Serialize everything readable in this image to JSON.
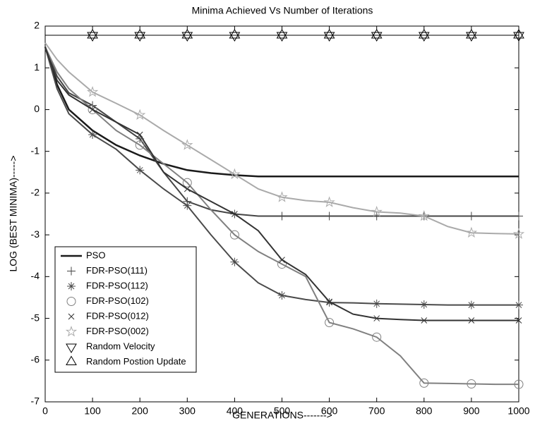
{
  "chart_data": {
    "type": "line",
    "title": "Minima Achieved Vs Number of Iterations",
    "xlabel": "GENERATIONS------->",
    "ylabel": "LOG (BEST MINIMA)----->",
    "x": [
      0,
      25,
      50,
      100,
      150,
      200,
      250,
      300,
      350,
      400,
      450,
      500,
      550,
      600,
      650,
      700,
      750,
      800,
      850,
      900,
      950,
      1000
    ],
    "xlim": [
      0,
      1000
    ],
    "ylim": [
      -7,
      2
    ],
    "xticks": [
      0,
      100,
      200,
      300,
      400,
      500,
      600,
      700,
      800,
      900,
      1000
    ],
    "yticks": [
      -7,
      -6,
      -5,
      -4,
      -3,
      -2,
      -1,
      0,
      1,
      2
    ],
    "grid": false,
    "legend": "lower left",
    "marker_every": 100,
    "series": [
      {
        "name": "PSO",
        "color": "#1a1a1a",
        "marker": "none",
        "values": [
          1.5,
          0.6,
          0,
          -0.5,
          -0.85,
          -1.1,
          -1.3,
          -1.45,
          -1.52,
          -1.57,
          -1.6,
          -1.6,
          -1.6,
          -1.6,
          -1.6,
          -1.6,
          -1.6,
          -1.6,
          -1.6,
          -1.6,
          -1.6,
          -1.6
        ]
      },
      {
        "name": "FDR-PSO(111)",
        "color": "#454545",
        "marker": "plus",
        "values": [
          1.5,
          0.8,
          0.4,
          0.1,
          -0.3,
          -0.7,
          -1.5,
          -2.2,
          -2.4,
          -2.5,
          -2.55,
          -2.55,
          -2.55,
          -2.55,
          -2.55,
          -2.55,
          -2.55,
          -2.55,
          -2.55,
          -2.55,
          -2.55,
          -2.55
        ]
      },
      {
        "name": "FDR-PSO(112)",
        "color": "#4a4a4a",
        "marker": "asterisk",
        "values": [
          1.5,
          0.5,
          -0.1,
          -0.6,
          -0.95,
          -1.45,
          -1.9,
          -2.3,
          -3.0,
          -3.65,
          -4.15,
          -4.45,
          -4.55,
          -4.62,
          -4.63,
          -4.65,
          -4.66,
          -4.67,
          -4.68,
          -4.68,
          -4.68,
          -4.68
        ]
      },
      {
        "name": "FDR-PSO(102)",
        "color": "#808080",
        "marker": "circle",
        "values": [
          1.5,
          0.9,
          0.5,
          0,
          -0.5,
          -0.85,
          -1.3,
          -1.75,
          -2.4,
          -3.0,
          -3.4,
          -3.7,
          -4.0,
          -5.1,
          -5.25,
          -5.45,
          -5.9,
          -6.55,
          -6.56,
          -6.57,
          -6.58,
          -6.58
        ]
      },
      {
        "name": "FDR-PSO(012)",
        "color": "#333333",
        "marker": "x",
        "values": [
          1.5,
          0.7,
          0.35,
          0,
          -0.3,
          -0.6,
          -1.5,
          -1.9,
          -2.2,
          -2.5,
          -2.9,
          -3.6,
          -3.95,
          -4.6,
          -4.9,
          -5.0,
          -5.03,
          -5.05,
          -5.05,
          -5.05,
          -5.05,
          -5.05
        ]
      },
      {
        "name": "FDR-PSO(002)",
        "color": "#aaaaaa",
        "marker": "star",
        "values": [
          1.6,
          1.2,
          0.9,
          0.42,
          0.15,
          -0.13,
          -0.5,
          -0.85,
          -1.2,
          -1.55,
          -1.9,
          -2.1,
          -2.18,
          -2.22,
          -2.35,
          -2.45,
          -2.48,
          -2.55,
          -2.8,
          -2.95,
          -2.97,
          -2.98
        ]
      },
      {
        "name": "Random Velocity",
        "color": "#000000",
        "marker": "triangle-down",
        "values": [
          1.78,
          1.78,
          1.78,
          1.78,
          1.78,
          1.78,
          1.78,
          1.78,
          1.78,
          1.78,
          1.78,
          1.78,
          1.78,
          1.78,
          1.78,
          1.78,
          1.78,
          1.78,
          1.78,
          1.78,
          1.78,
          1.78
        ]
      },
      {
        "name": "Random Postion Update",
        "color": "#000000",
        "marker": "triangle-up",
        "values": [
          1.78,
          1.78,
          1.78,
          1.78,
          1.78,
          1.78,
          1.78,
          1.78,
          1.78,
          1.78,
          1.78,
          1.78,
          1.78,
          1.78,
          1.78,
          1.78,
          1.78,
          1.78,
          1.78,
          1.78,
          1.78,
          1.78
        ]
      }
    ]
  }
}
